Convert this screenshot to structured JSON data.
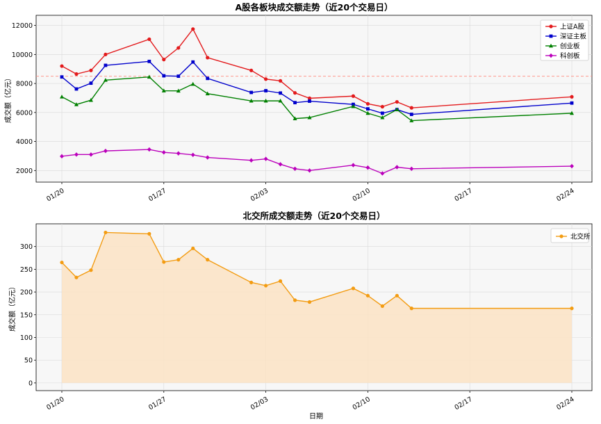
{
  "chart_data": [
    {
      "type": "line",
      "title": "A股各板块成交额走势（近20个交易日）",
      "xlabel": "",
      "ylabel": "成交额（亿元）",
      "x_ticks": [
        "01/20",
        "01/27",
        "02/03",
        "02/10",
        "02/17",
        "02/24"
      ],
      "ylim": [
        1200,
        12700
      ],
      "y_ticks": [
        2000,
        4000,
        6000,
        8000,
        10000,
        12000
      ],
      "grid": true,
      "legend": "top-right",
      "reference_line": {
        "y": 8500,
        "color": "#ff8a80",
        "style": "dashed"
      },
      "x": [
        "01/20",
        "01/21",
        "01/22",
        "01/23",
        "01/26",
        "01/27",
        "01/28",
        "01/29",
        "01/30",
        "02/02",
        "02/03",
        "02/04",
        "02/05",
        "02/06",
        "02/09",
        "02/10",
        "02/11",
        "02/12",
        "02/13",
        "02/24"
      ],
      "series": [
        {
          "name": "上证A股",
          "color": "#e31a1c",
          "marker": "circle",
          "values": [
            9200,
            8650,
            8900,
            10000,
            11050,
            9650,
            10450,
            11750,
            9780,
            8900,
            8300,
            8180,
            7350,
            6980,
            7130,
            6600,
            6400,
            6730,
            6320,
            7080
          ]
        },
        {
          "name": "深证主板",
          "color": "#0000cc",
          "marker": "square",
          "values": [
            8450,
            7620,
            8020,
            9250,
            9520,
            8530,
            8500,
            9480,
            8350,
            7380,
            7500,
            7340,
            6680,
            6780,
            6560,
            6250,
            5950,
            6200,
            5870,
            6650
          ]
        },
        {
          "name": "创业板",
          "color": "#008000",
          "marker": "triangle",
          "values": [
            7080,
            6550,
            6850,
            8230,
            8450,
            7500,
            7490,
            7960,
            7300,
            6800,
            6800,
            6800,
            5580,
            5650,
            6420,
            5950,
            5650,
            6200,
            5440,
            5950
          ]
        },
        {
          "name": "科创板",
          "color": "#bb00bb",
          "marker": "diamond",
          "values": [
            2980,
            3100,
            3100,
            3350,
            3450,
            3250,
            3180,
            3080,
            2900,
            2700,
            2800,
            2430,
            2120,
            2000,
            2370,
            2200,
            1800,
            2230,
            2120,
            2300
          ]
        }
      ]
    },
    {
      "type": "area",
      "title": "北交所成交额走势（近20个交易日）",
      "xlabel": "日期",
      "ylabel": "成交额（亿元）",
      "x_ticks": [
        "01/20",
        "01/27",
        "02/03",
        "02/10",
        "02/17",
        "02/24"
      ],
      "ylim": [
        -17,
        350
      ],
      "y_ticks": [
        0,
        50,
        100,
        150,
        200,
        250,
        300
      ],
      "grid": true,
      "legend": "top-right",
      "x": [
        "01/20",
        "01/21",
        "01/22",
        "01/23",
        "01/26",
        "01/27",
        "01/28",
        "01/29",
        "01/30",
        "02/02",
        "02/03",
        "02/04",
        "02/05",
        "02/06",
        "02/09",
        "02/10",
        "02/11",
        "02/12",
        "02/13",
        "02/24"
      ],
      "series": [
        {
          "name": "北交所",
          "color": "#f39c12",
          "marker": "circle",
          "values": [
            265,
            232,
            248,
            331,
            328,
            266,
            271,
            296,
            271,
            221,
            214,
            224,
            182,
            178,
            208,
            192,
            169,
            192,
            164,
            164
          ]
        }
      ]
    }
  ]
}
